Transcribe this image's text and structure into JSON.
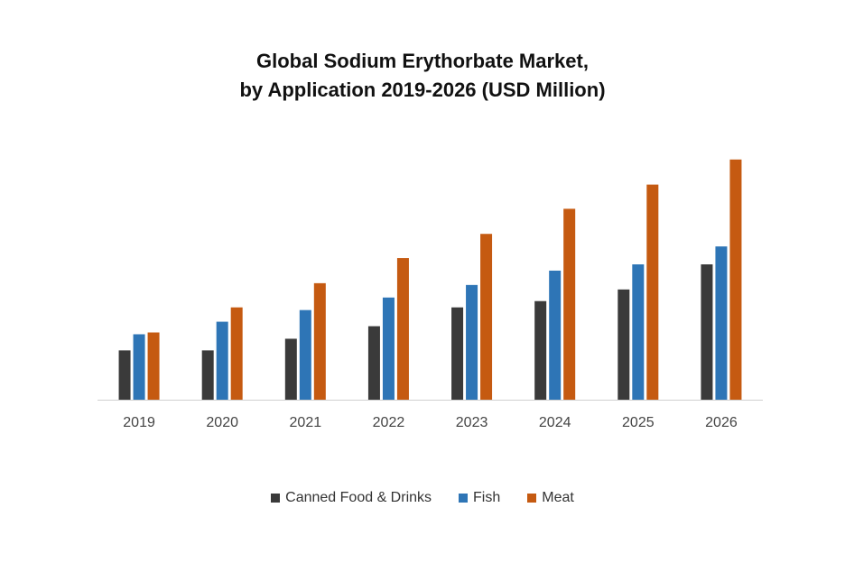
{
  "chart_data": {
    "type": "bar",
    "title": "Global Sodium Erythorbate Market,",
    "subtitle": "by Application 2019-2026 (USD Million)",
    "xlabel": "",
    "ylabel": "",
    "categories": [
      "2019",
      "2020",
      "2021",
      "2022",
      "2023",
      "2024",
      "2025",
      "2026"
    ],
    "series": [
      {
        "name": "Canned Food & Drinks",
        "color": "#3a3a3a",
        "values": [
          55,
          55,
          68,
          82,
          103,
          110,
          123,
          151
        ]
      },
      {
        "name": "Fish",
        "color": "#2e75b6",
        "values": [
          73,
          87,
          100,
          114,
          128,
          144,
          151,
          171
        ]
      },
      {
        "name": "Meat",
        "color": "#c55a11",
        "values": [
          75,
          103,
          130,
          158,
          185,
          213,
          240,
          268
        ]
      }
    ],
    "ylim": [
      0,
      300
    ],
    "grid": false,
    "legend_position": "bottom"
  }
}
